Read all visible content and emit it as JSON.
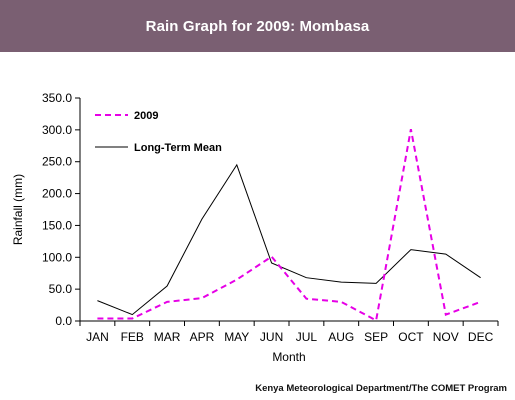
{
  "header": {
    "title": "Rain Graph for 2009: Mombasa"
  },
  "credit": "Kenya Meteorological Department/The COMET Program",
  "colors": {
    "header_bg": "#7a5f72",
    "series_2009": "#e600e6",
    "series_mean": "#000000"
  },
  "chart_data": {
    "type": "line",
    "title": "",
    "xlabel": "Month",
    "ylabel": "Rainfall (mm)",
    "categories": [
      "JAN",
      "FEB",
      "MAR",
      "APR",
      "MAY",
      "JUN",
      "JUL",
      "AUG",
      "SEP",
      "OCT",
      "NOV",
      "DEC"
    ],
    "ylim": [
      0,
      350
    ],
    "yticks": [
      "0.0",
      "50.0",
      "100.0",
      "150.0",
      "200.0",
      "250.0",
      "300.0",
      "350.0"
    ],
    "grid": false,
    "legend": "top-left",
    "series": [
      {
        "name": "2009",
        "style": "dashed",
        "color": "#e600e6",
        "values": [
          4,
          4,
          30,
          36,
          65,
          101,
          35,
          30,
          1,
          301,
          10,
          30
        ]
      },
      {
        "name": "Long-Term Mean",
        "style": "solid",
        "color": "#000000",
        "values": [
          32,
          10,
          55,
          160,
          245,
          91,
          68,
          61,
          59,
          112,
          105,
          68
        ]
      }
    ]
  }
}
